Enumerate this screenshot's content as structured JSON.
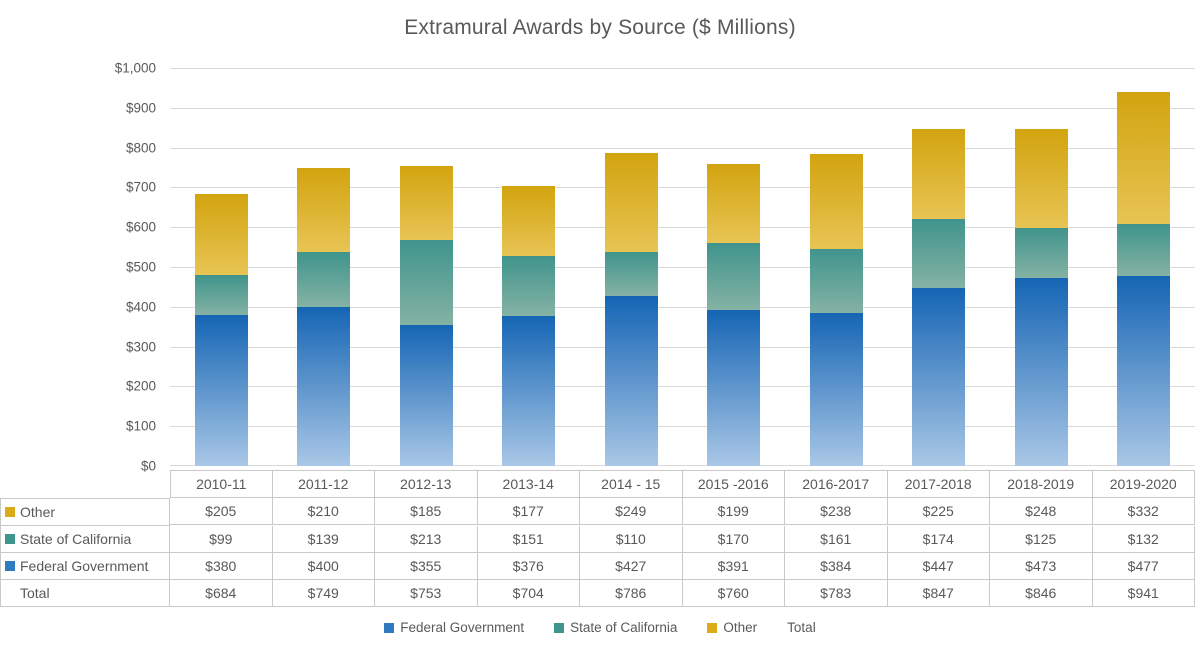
{
  "title": "Extramural Awards by Source ($ Millions)",
  "colors": {
    "federal_top": "#1565b4",
    "federal_bottom": "#a9c7e6",
    "state_top": "#3f948c",
    "state_bottom": "#85b2a4",
    "other_top": "#d2a40f",
    "other_bottom": "#e8c454",
    "legend_federal": "#2e7bbf",
    "legend_state": "#3f968c",
    "legend_other": "#d9ab16",
    "grid": "#d9d9d9",
    "text": "#595959",
    "table_border": "#c9c9c9"
  },
  "y_axis": {
    "labels": [
      "$1,000",
      "$900",
      "$800",
      "$700",
      "$600",
      "$500",
      "$400",
      "$300",
      "$200",
      "$100",
      "$0"
    ]
  },
  "chart_data": {
    "type": "bar",
    "stacked": true,
    "title": "Extramural Awards by Source ($ Millions)",
    "xlabel": "",
    "ylabel": "",
    "ylim": [
      0,
      1000
    ],
    "grid": true,
    "legend_position": "bottom",
    "categories": [
      "2010-11",
      "2011-12",
      "2012-13",
      "2013-14",
      "2014 - 15",
      "2015 -2016",
      "2016-2017",
      "2017-2018",
      "2018-2019",
      "2019-2020"
    ],
    "series": [
      {
        "name": "Federal Government",
        "values": [
          380,
          400,
          355,
          376,
          427,
          391,
          384,
          447,
          473,
          477
        ]
      },
      {
        "name": "State of California",
        "values": [
          99,
          139,
          213,
          151,
          110,
          170,
          161,
          174,
          125,
          132
        ]
      },
      {
        "name": "Other",
        "values": [
          205,
          210,
          185,
          177,
          249,
          199,
          238,
          225,
          248,
          332
        ]
      }
    ],
    "totals": [
      684,
      749,
      753,
      704,
      786,
      760,
      783,
      847,
      846,
      941
    ]
  },
  "table": {
    "row_labels": [
      "Other",
      "State of California",
      "Federal Government",
      "Total"
    ],
    "value_prefix": "$"
  },
  "legend": {
    "items": [
      {
        "label": "Federal Government",
        "series": "Federal Government"
      },
      {
        "label": "State of California",
        "series": "State of California"
      },
      {
        "label": "Other",
        "series": "Other"
      },
      {
        "label": "Total",
        "series": null
      }
    ]
  }
}
